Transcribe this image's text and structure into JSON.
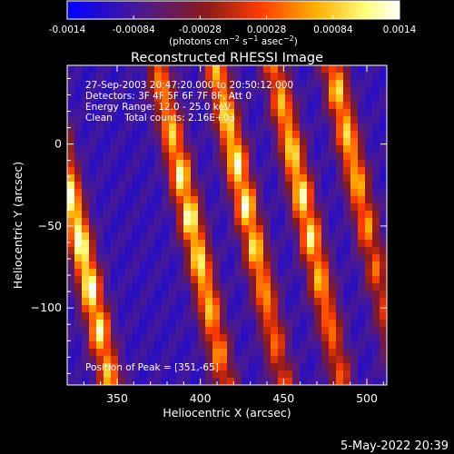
{
  "colorbar": {
    "ticks": [
      "-0.0014",
      "-0.00084",
      "-0.00028",
      "0.00028",
      "0.00084",
      "0.0014"
    ],
    "tick_values": [
      -0.0014,
      -0.00084,
      -0.00028,
      0.00028,
      0.00084,
      0.0014
    ],
    "range": [
      -0.0014,
      0.0014
    ],
    "colormap": [
      "#0000ff",
      "#4b1a8f",
      "#8b1a1a",
      "#ff3b00",
      "#ffb000",
      "#ffff80",
      "#ffffff"
    ]
  },
  "chart_data": {
    "type": "heatmap",
    "title": "Reconstructed RHESSI Image",
    "xlabel": "Heliocentric X (arcsec)",
    "ylabel": "Heliocentric Y (arcsec)",
    "xlim": [
      320,
      512
    ],
    "ylim": [
      -147,
      48
    ],
    "x_ticks": [
      350,
      400,
      450,
      500
    ],
    "y_ticks": [
      0,
      -50,
      -100
    ],
    "peak_position": [
      351,
      -65
    ],
    "bands": [
      {
        "x0": 329,
        "slope": 0.21,
        "peak_y": -65,
        "amp": 0.0014
      },
      {
        "x0": 398,
        "slope": 0.21,
        "peak_y": -45,
        "amp": 0.0012
      },
      {
        "x0": 433,
        "slope": 0.21,
        "peak_y": -20,
        "amp": 0.0012
      },
      {
        "x0": 468,
        "slope": 0.21,
        "peak_y": -30,
        "amp": 0.0011
      },
      {
        "x0": 503,
        "slope": 0.21,
        "peak_y": 10,
        "amp": 0.0009
      }
    ]
  },
  "info": {
    "line1": "27-Sep-2003 20:47:20.000 to 20:50:12.000",
    "line2": "Detectors: 3F 4F 5F 6F 7F 8F, Att 0",
    "line3": "Energy Range: 12.0 - 25.0 keV",
    "line4": "Clean    Total counts: 2.16E+03",
    "peak": "Position of Peak = [351,-65]"
  },
  "timestamp": "5-May-2022 20:39"
}
